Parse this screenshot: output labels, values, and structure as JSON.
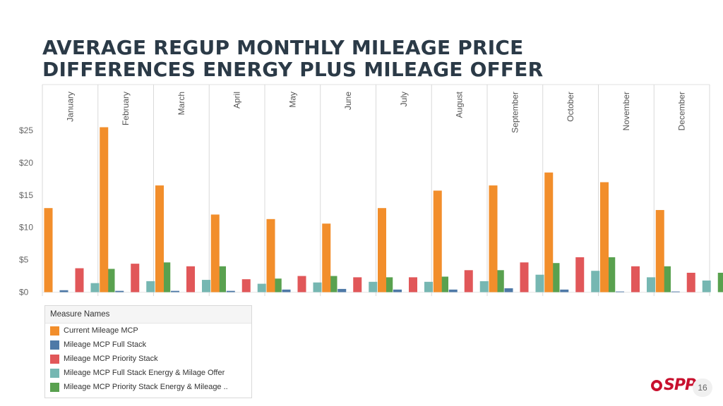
{
  "slide": {
    "title_line1": "AVERAGE REGUP MONTHLY MILEAGE PRICE",
    "title_line2": "DIFFERENCES ENERGY PLUS MILEAGE OFFER",
    "page_number": "16",
    "brand_name": "SPP"
  },
  "chart_data": {
    "type": "bar",
    "title": "AVERAGE REGUP MONTHLY MILEAGE PRICE DIFFERENCES ENERGY PLUS MILEAGE OFFER",
    "categories": [
      "January",
      "February",
      "March",
      "April",
      "May",
      "June",
      "July",
      "August",
      "September",
      "October",
      "November",
      "December"
    ],
    "y_ticks": [
      "$0",
      "$5",
      "$10",
      "$15",
      "$20",
      "$25"
    ],
    "y_tick_values": [
      0,
      5,
      10,
      15,
      20,
      25
    ],
    "ylim": [
      -0.8,
      25.5
    ],
    "grid": false,
    "legend_title": "Measure Names",
    "legend_position": "bottom-left",
    "series": [
      {
        "name": "Current Mileage MCP",
        "color": "#f28e2b",
        "values": [
          13.0,
          25.5,
          16.5,
          12.0,
          11.3,
          10.6,
          13.0,
          15.7,
          16.5,
          18.5,
          17.0,
          12.7
        ]
      },
      {
        "name": "Mileage MCP Full Stack",
        "color": "#4e79a7",
        "values": [
          0.3,
          0.2,
          0.2,
          0.2,
          0.4,
          0.5,
          0.4,
          0.4,
          0.6,
          0.4,
          0.1,
          0.1
        ]
      },
      {
        "name": "Mileage MCP Priority Stack",
        "color": "#e15759",
        "values": [
          3.7,
          4.4,
          4.0,
          2.0,
          2.5,
          2.3,
          2.3,
          3.4,
          4.6,
          5.4,
          4.0,
          3.0
        ]
      },
      {
        "name": "Mileage MCP Full Stack Energy & Milage Offer",
        "color": "#76b7b2",
        "values": [
          1.4,
          1.7,
          1.9,
          1.3,
          1.5,
          1.6,
          1.6,
          1.7,
          2.7,
          3.3,
          2.3,
          1.8
        ]
      },
      {
        "name": "Mileage MCP Priority Stack Energy & Mileage ..",
        "color": "#59a14f",
        "values": [
          3.6,
          4.6,
          4.0,
          2.1,
          2.5,
          2.3,
          2.4,
          3.4,
          4.5,
          5.4,
          4.0,
          3.0
        ]
      }
    ]
  }
}
